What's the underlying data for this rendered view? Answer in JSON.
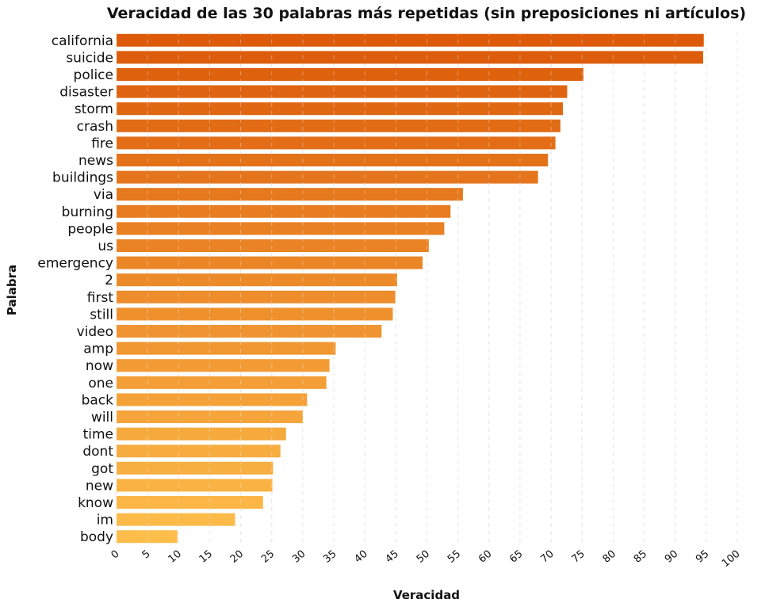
{
  "chart_data": {
    "type": "bar",
    "orientation": "horizontal",
    "title": "Veracidad de las 30 palabras más repetidas (sin preposiciones ni artículos)",
    "xlabel": "Veracidad",
    "ylabel": "Palabra",
    "xlim": [
      0,
      100
    ],
    "xticks": [
      0,
      5,
      10,
      15,
      20,
      25,
      30,
      35,
      40,
      45,
      50,
      55,
      60,
      65,
      70,
      75,
      80,
      85,
      90,
      95,
      100
    ],
    "grid": "vertical dashed",
    "categories": [
      "california",
      "suicide",
      "police",
      "disaster",
      "storm",
      "crash",
      "fire",
      "news",
      "buildings",
      "via",
      "burning",
      "people",
      "us",
      "emergency",
      "2",
      "first",
      "still",
      "video",
      "amp",
      "now",
      "one",
      "back",
      "will",
      "time",
      "dont",
      "got",
      "new",
      "know",
      "im",
      "body"
    ],
    "values": [
      94.6,
      94.5,
      75.2,
      72.6,
      71.9,
      71.5,
      70.7,
      69.5,
      67.9,
      55.8,
      53.8,
      52.8,
      50.3,
      49.3,
      45.2,
      44.9,
      44.5,
      42.7,
      35.3,
      34.3,
      33.8,
      30.7,
      30.0,
      27.3,
      26.4,
      25.2,
      25.1,
      23.6,
      19.1,
      9.8
    ],
    "color_start": "#dc5a0a",
    "color_end": "#fdbd4a"
  }
}
